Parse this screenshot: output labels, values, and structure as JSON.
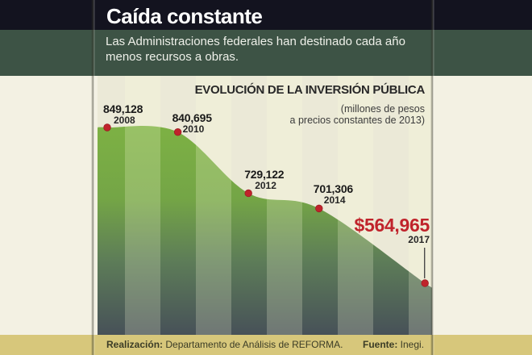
{
  "header": {
    "title": "Caída constante",
    "deck": "Las Administraciones federales han destinado cada año menos recursos a obras."
  },
  "chart": {
    "title": "EVOLUCIÓN DE LA INVERSIÓN PÚBLICA",
    "note_line1": "(millones de pesos",
    "note_line2": "a precios constantes de 2013)"
  },
  "chart_data": {
    "type": "area",
    "title": "EVOLUCIÓN DE LA INVERSIÓN PÚBLICA",
    "unit_note": "(millones de pesos a precios constantes de 2013)",
    "x": [
      2008,
      2010,
      2012,
      2014,
      2017
    ],
    "values": [
      849128,
      840695,
      729122,
      701306,
      564965
    ],
    "point_labels": [
      "849,128",
      "840,695",
      "729,122",
      "701,306",
      "$564,965"
    ],
    "year_labels": [
      "2008",
      "2010",
      "2012",
      "2014",
      "2017"
    ],
    "highlight_index": 4,
    "x_range": [
      2008,
      2017
    ],
    "grid": "vertical-year-stripes",
    "legend": "none"
  },
  "footer": {
    "realization_label": "Realización:",
    "realization_text": " Departamento de Análisis de REFORMA.",
    "source_label": "Fuente:",
    "source_text": " Inegi."
  },
  "colors": {
    "navy_band": "#13131f",
    "green_band": "#3d5345",
    "cream_bg": "#f3f1e3",
    "stripe_base": "#ebe9d7",
    "stripe_light_overlay": "#ffffe0",
    "area_top_green": "#7db144",
    "area_bottom_slate": "#475158",
    "accent_red": "#c0232b",
    "footer_khaki": "#d7c77b",
    "footer_text": "#3b3c26"
  }
}
